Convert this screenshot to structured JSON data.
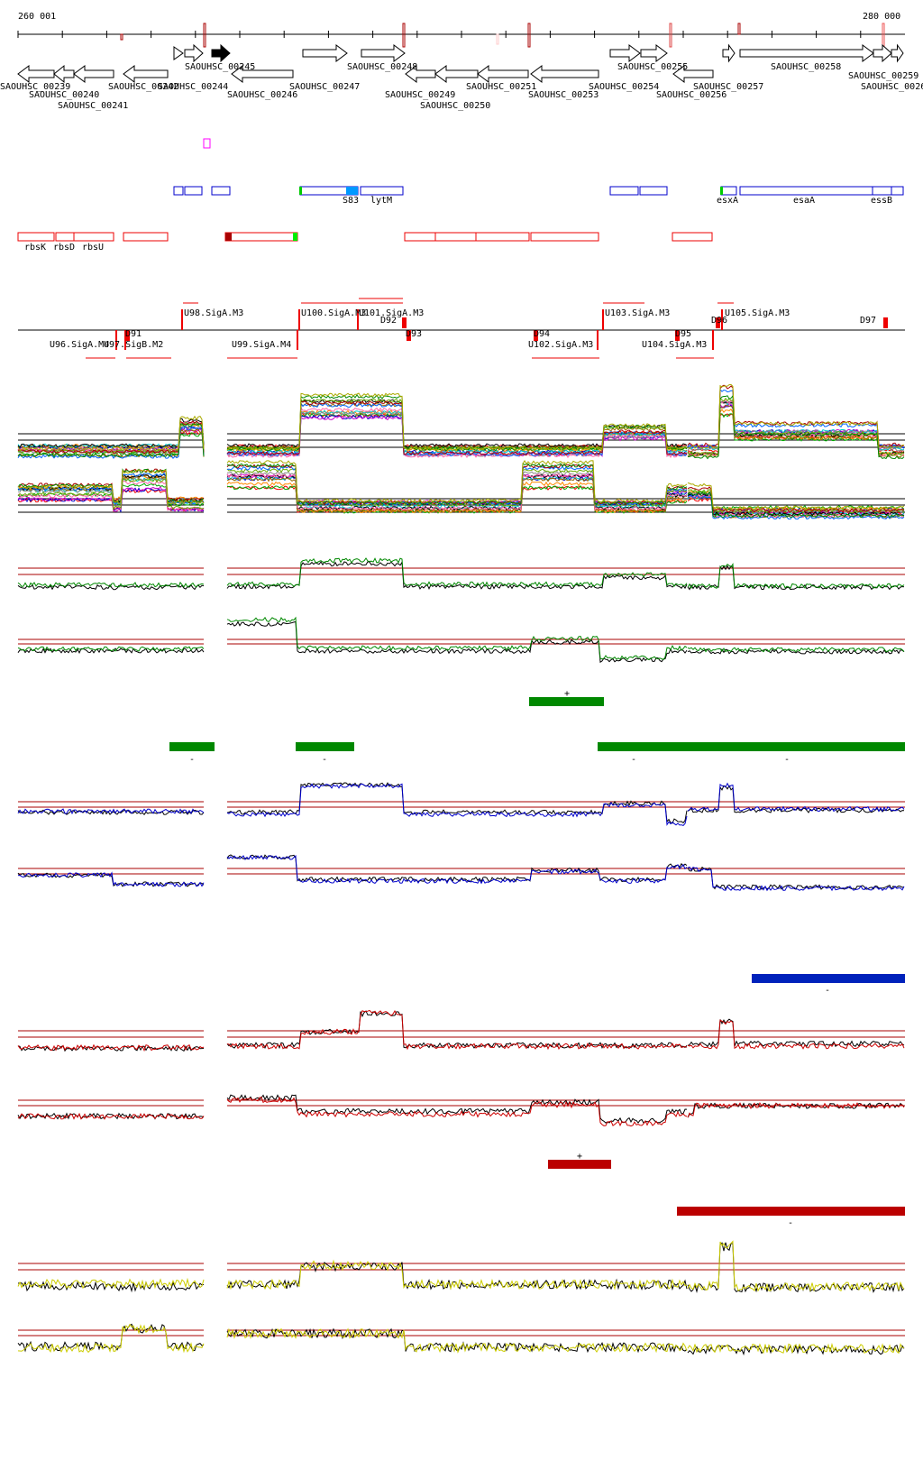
{
  "coords": {
    "start": "260 001",
    "end": "280 000"
  },
  "genes": [
    "SAOUHSC_00239",
    "SAOUHSC_00240",
    "SAOUHSC_00241",
    "SAOUHSC_00242",
    "SAOUHSC_00244",
    "SAOUHSC_00245",
    "SAOUHSC_00246",
    "SAOUHSC_00247",
    "SAOUHSC_00248",
    "SAOUHSC_00249",
    "SAOUHSC_00250",
    "SAOUHSC_00251",
    "SAOUHSC_00253",
    "SAOUHSC_00254",
    "SAOUHSC_00255",
    "SAOUHSC_00256",
    "SAOUHSC_00257",
    "SAOUHSC_00258",
    "SAOUHSC_00259",
    "SAOUHSC_0026"
  ],
  "features_blue": [
    "S83",
    "lytM",
    "esxA",
    "esaA",
    "essB"
  ],
  "features_red": [
    "rbsK",
    "rbsD",
    "rbsU"
  ],
  "promoters": [
    "U96.SigA.M4",
    "U97.SigB.M2",
    "D91",
    "U98.SigA.M3",
    "U99.SigA.M4",
    "U100.SigA.M3",
    "U101.SigA.M3",
    "D92",
    "D93",
    "D94",
    "U102.SigA.M3",
    "U103.SigA.M3",
    "U104.SigA.M3",
    "D95",
    "D96",
    "U105.SigA.M3",
    "D97"
  ],
  "segments": {
    "plus": "+",
    "minus": "-"
  },
  "colors": {
    "green": "#008800",
    "blue": "#0022bb",
    "red": "#bb0000",
    "yellow": "#dddd00"
  }
}
